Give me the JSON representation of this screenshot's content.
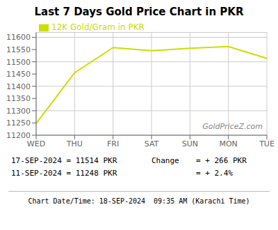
{
  "chart_data": {
    "type": "line",
    "title": "Last 7 Days Gold Price Chart in PKR",
    "categories": [
      "WED",
      "THU",
      "FRI",
      "SAT",
      "SUN",
      "MON",
      "TUE"
    ],
    "series": [
      {
        "name": "12K Gold/Gram in PKR",
        "color": "#ccdd00",
        "values": [
          11248,
          11455,
          11558,
          11545,
          11555,
          11562,
          11514
        ]
      }
    ],
    "ylim": [
      11200,
      11620
    ],
    "yticks": [
      11200,
      11250,
      11300,
      11350,
      11400,
      11450,
      11500,
      11550,
      11600
    ],
    "grid": true,
    "legend": "upper left",
    "annotations": [
      "GoldPriceZ.com",
      "17-SEP-2024 = 11514 PKR",
      "11-SEP-2024 = 11248 PKR",
      "Change",
      "= + 266 PKR",
      "= + 2.4%",
      "Chart Date/Time: 18-SEP-2024  09:35 AM (Karachi Time)"
    ]
  }
}
